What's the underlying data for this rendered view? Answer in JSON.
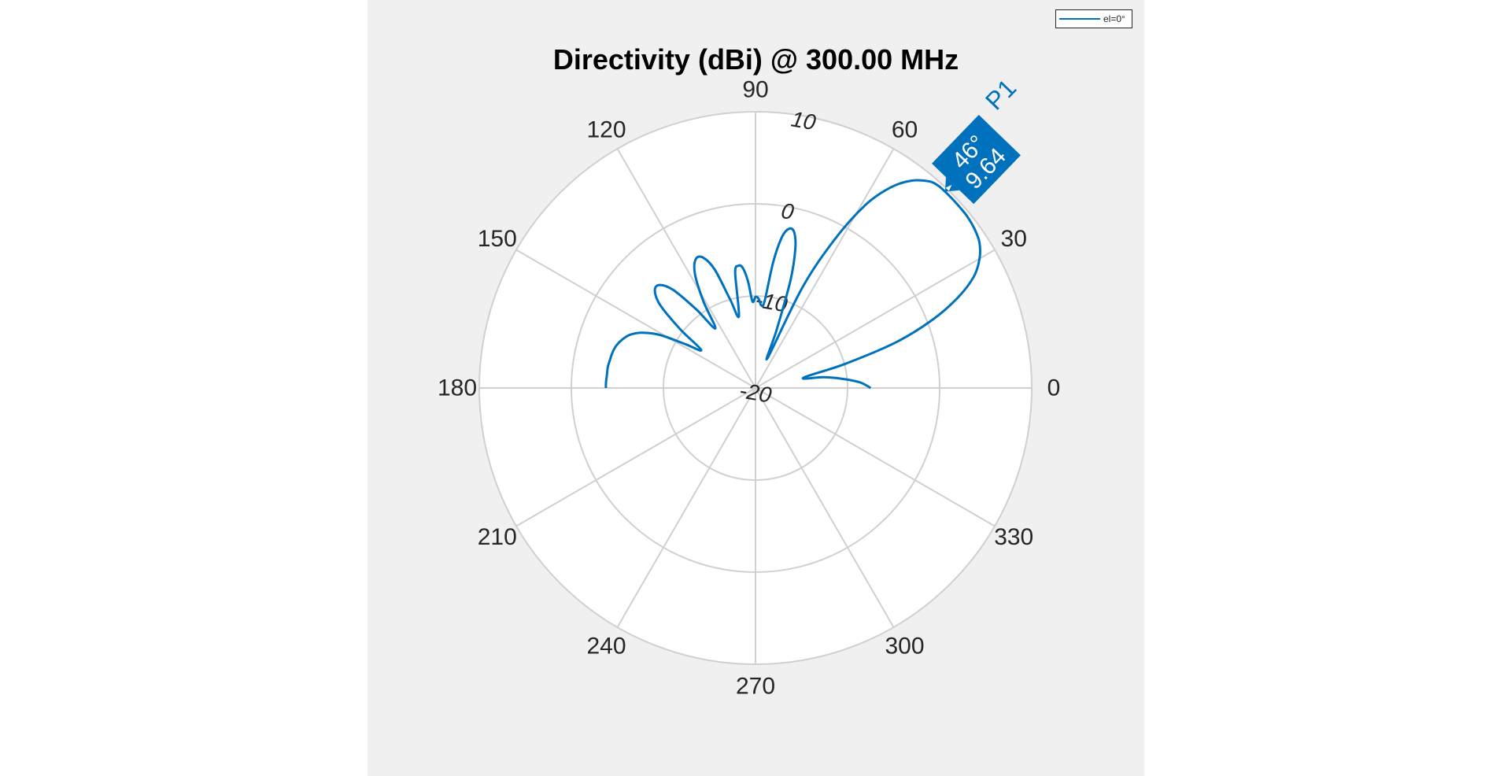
{
  "chart_data": {
    "type": "polar-line",
    "title": "Directivity (dBi) @ 300.00 MHz",
    "angle_unit": "degrees",
    "angle_ticks": [
      "0",
      "30",
      "60",
      "90",
      "120",
      "150",
      "180",
      "210",
      "240",
      "270",
      "300",
      "330"
    ],
    "angle_tick_values": [
      0,
      30,
      60,
      90,
      120,
      150,
      180,
      210,
      240,
      270,
      300,
      330
    ],
    "radial_ticks": [
      "-20",
      "-10",
      "0",
      "10"
    ],
    "radial_tick_values": [
      -20,
      -10,
      0,
      10
    ],
    "rlim": [
      -20,
      10
    ],
    "grid": true,
    "legend_position": "top-right",
    "series": [
      {
        "name": "el=0°",
        "color": "#0072bd",
        "theta_deg": [
          0,
          3,
          6,
          9,
          12,
          15,
          18,
          21,
          24,
          27,
          30,
          33,
          36,
          39,
          42,
          44,
          46,
          48,
          50,
          53,
          56,
          59,
          62,
          65,
          68,
          70,
          72,
          74,
          76,
          78,
          80,
          82,
          84,
          86,
          88,
          90,
          92,
          94,
          96,
          98,
          100,
          103,
          106,
          109,
          112,
          115,
          118,
          121,
          124,
          127,
          130,
          133,
          136,
          139,
          142,
          145,
          148,
          151,
          154,
          157,
          160,
          163,
          166,
          169,
          172,
          175,
          178,
          180
        ],
        "r_dbi": [
          -7.5,
          -8.6,
          -10.5,
          -12.5,
          -14.7,
          -10.0,
          -4.0,
          0.5,
          4.0,
          6.6,
          8.1,
          9.0,
          9.4,
          9.6,
          9.63,
          9.64,
          9.64,
          9.6,
          9.3,
          8.2,
          6.3,
          3.2,
          -1.8,
          -8.0,
          -16.5,
          -13.3,
          -7.7,
          -4.3,
          -2.6,
          -2.3,
          -3.3,
          -6.2,
          -10.5,
          -11.0,
          -10.3,
          -10.1,
          -10.6,
          -8.4,
          -6.9,
          -6.6,
          -7.3,
          -12.0,
          -10.0,
          -6.4,
          -4.7,
          -4.6,
          -6.0,
          -9.0,
          -12.2,
          -9.3,
          -6.1,
          -4.7,
          -4.8,
          -6.3,
          -9.6,
          -12.8,
          -11.0,
          -8.1,
          -6.3,
          -5.2,
          -4.6,
          -4.2,
          -4.0,
          -3.9,
          -3.8,
          -3.8,
          -3.75,
          -3.75
        ]
      }
    ],
    "annotations": [
      {
        "name": "P1",
        "angle_text": "46°",
        "value_text": "9.64",
        "theta_deg": 46,
        "r_dbi": 9.64
      }
    ]
  }
}
